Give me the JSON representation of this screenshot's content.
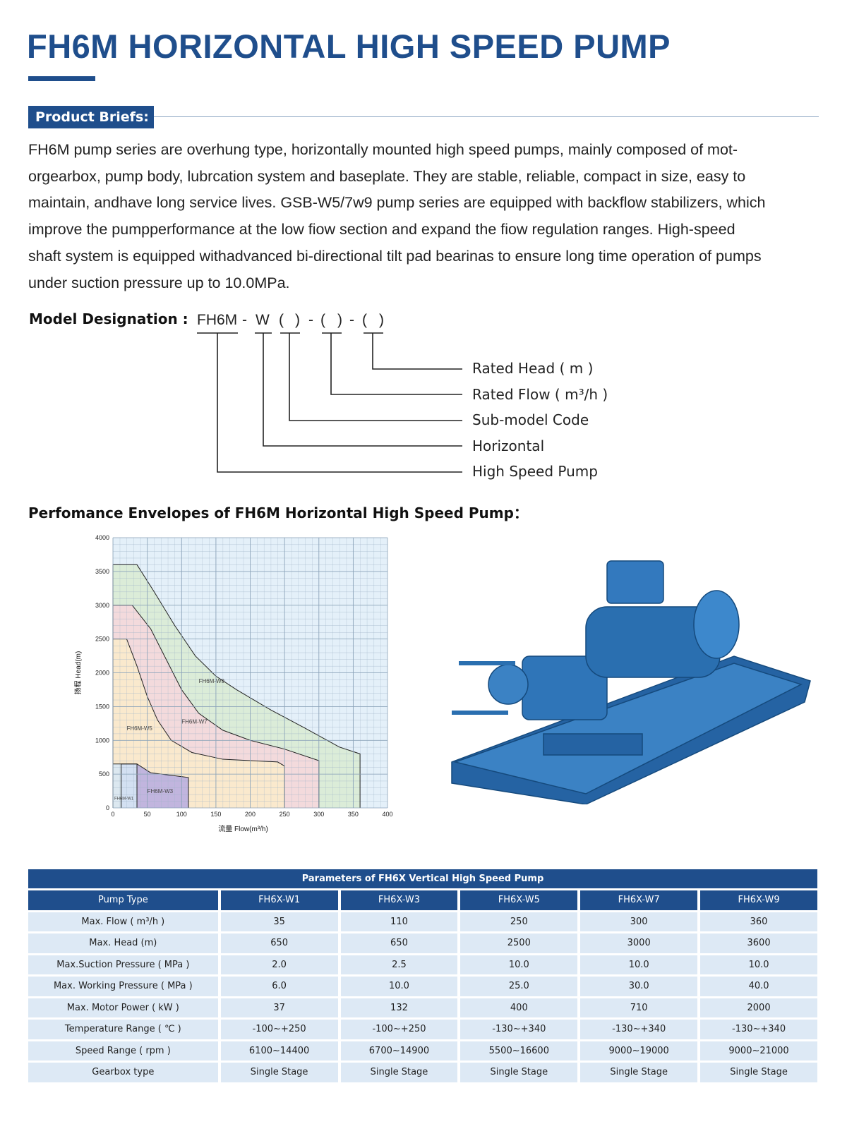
{
  "header": {
    "title": "FH6M HORIZONTAL HIGH SPEED PUMP"
  },
  "briefs": {
    "label": "Product Briefs:",
    "lines": [
      "FH6M pump series are overhung type, horizontally mounted high speed pumps, mainly composed of mot-",
      "orgearbox, pump body, lubrcation system and baseplate. They are stable, reliable, compact in size, easy to",
      "maintain, andhave long service lives. GSB-W5/7w9 pump series are equipped with backflow stabilizers, which",
      "improve the pumpperformance at the low fiow section and expand the fiow regulation ranges. High-speed",
      "shaft system is equipped withadvanced bi-directional tilt pad bearinas to ensure long time operation of pumps",
      "under suction pressure up to 10.0MPa."
    ]
  },
  "designation": {
    "label": "Model Designation :",
    "tokens": [
      "FH6M",
      "-",
      "W",
      "(",
      ")",
      "-",
      "(",
      ")",
      "-",
      "(",
      ")"
    ],
    "items": [
      "Rated Head ( m )",
      "Rated Flow ( m³/h )",
      "Sub-model Code",
      "Horizontal",
      "High Speed Pump"
    ]
  },
  "chart_data": {
    "type": "area",
    "title": "Perfomance Envelopes of FH6M Horizontal High Speed Pump：",
    "x_label": "流量 Flow(m³/h)",
    "y_label": "扬程 Head(m)",
    "xlim": [
      0,
      400
    ],
    "xticks": [
      0,
      50,
      100,
      150,
      200,
      250,
      300,
      350,
      400
    ],
    "ylim": [
      0,
      4000
    ],
    "yticks": [
      0,
      500,
      1000,
      1500,
      2000,
      2500,
      3000,
      3500,
      4000
    ],
    "grid": true,
    "series": [
      {
        "name": "FH6M-W9",
        "color": "#d9ebd2",
        "x": [
          0,
          0,
          35,
          60,
          90,
          120,
          150,
          180,
          230,
          280,
          330,
          360,
          360
        ],
        "y": [
          0,
          3600,
          3600,
          3200,
          2700,
          2250,
          1950,
          1750,
          1450,
          1180,
          900,
          800,
          0
        ]
      },
      {
        "name": "FH6M-W7",
        "color": "#f7d7dd",
        "x": [
          0,
          0,
          28,
          55,
          80,
          100,
          125,
          160,
          200,
          250,
          300,
          300
        ],
        "y": [
          0,
          3000,
          3000,
          2650,
          2150,
          1750,
          1400,
          1150,
          1000,
          870,
          700,
          0
        ]
      },
      {
        "name": "FH6M-W5",
        "color": "#faebca",
        "x": [
          0,
          0,
          20,
          35,
          50,
          65,
          85,
          115,
          160,
          240,
          250,
          250
        ],
        "y": [
          0,
          2500,
          2500,
          2100,
          1650,
          1300,
          1000,
          820,
          720,
          680,
          620,
          0
        ]
      },
      {
        "name": "FH6M-W3",
        "color": "#b6ace0",
        "x": [
          12,
          12,
          35,
          55,
          110,
          110
        ],
        "y": [
          0,
          650,
          650,
          520,
          450,
          0
        ]
      },
      {
        "name": "FH6M-W1",
        "color": "#d6e8f6",
        "x": [
          0,
          0,
          35,
          35
        ],
        "y": [
          0,
          650,
          650,
          0
        ]
      }
    ]
  },
  "table": {
    "title": "Parameters of FH6X Vertical High Speed Pump",
    "header": [
      "Pump Type",
      "FH6X-W1",
      "FH6X-W3",
      "FH6X-W5",
      "FH6X-W7",
      "FH6X-W9"
    ],
    "rows": [
      [
        "Max. Flow ( m³/h )",
        "35",
        "110",
        "250",
        "300",
        "360"
      ],
      [
        "Max. Head (m)",
        "650",
        "650",
        "2500",
        "3000",
        "3600"
      ],
      [
        "Max.Suction Pressure ( MPa )",
        "2.0",
        "2.5",
        "10.0",
        "10.0",
        "10.0"
      ],
      [
        "Max. Working Pressure ( MPa )",
        "6.0",
        "10.0",
        "25.0",
        "30.0",
        "40.0"
      ],
      [
        "Max. Motor Power ( kW )",
        "37",
        "132",
        "400",
        "710",
        "2000"
      ],
      [
        "Temperature Range ( ℃ )",
        "-100~+250",
        "-100~+250",
        "-130~+340",
        "-130~+340",
        "-130~+340"
      ],
      [
        "Speed Range ( rpm )",
        "6100~14400",
        "6700~14900",
        "5500~16600",
        "9000~19000",
        "9000~21000"
      ],
      [
        "Gearbox type",
        "Single Stage",
        "Single Stage",
        "Single Stage",
        "Single Stage",
        "Single Stage"
      ]
    ]
  }
}
